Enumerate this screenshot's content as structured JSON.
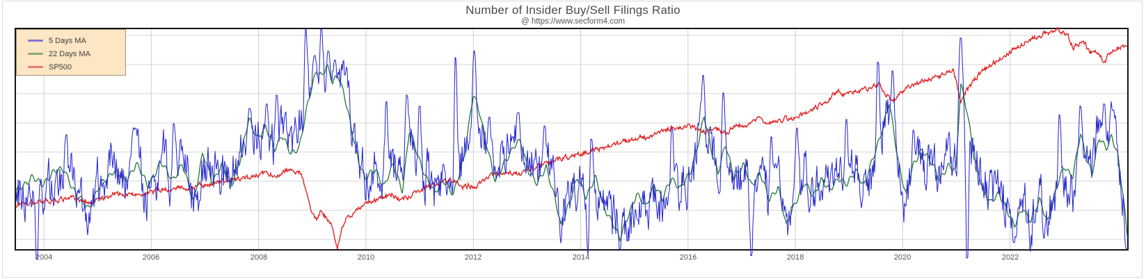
{
  "title": "Number of Insider Buy/Sell Filings Ratio",
  "subtitle": "@ https://www.secform4.com",
  "legend": {
    "background": "#fce6c3",
    "border_color": "#a3947c",
    "items": [
      {
        "label": "5 Days MA",
        "swatch_color": "#8276d4",
        "line_color": "#2a2ace"
      },
      {
        "label": "22 Days MA",
        "swatch_color": "#90a877",
        "line_color": "#2d7f3f"
      },
      {
        "label": "SP500",
        "swatch_color": "#e87a72",
        "line_color": "#e02424"
      }
    ]
  },
  "axis": {
    "x_ticks": [
      "2004",
      "2006",
      "2008",
      "2010",
      "2012",
      "2014",
      "2016",
      "2018",
      "2020",
      "2022"
    ],
    "y_ticks": [],
    "y_axis_note": "y-axis has no visible labels"
  },
  "chart_data": {
    "type": "line",
    "title": "Number of Insider Buy/Sell Filings Ratio",
    "subtitle": "@ https://www.secform4.com",
    "xlabel": "",
    "ylabel": "",
    "x_range": [
      2003.48,
      2024.18
    ],
    "x_tick_years": [
      2004,
      2006,
      2008,
      2010,
      2012,
      2014,
      2016,
      2018,
      2020,
      2022
    ],
    "y_axis": "unlabeled; series values normalized 0 (bottom of plot) to 1 (top of plot)",
    "grid": "on",
    "legend_position": "top-left",
    "series": [
      {
        "name": "SP500",
        "color": "#e02424",
        "style": "smooth-jitter",
        "keyframes": [
          [
            2003.46,
            0.2
          ],
          [
            2004.01,
            0.22
          ],
          [
            2004.58,
            0.23
          ],
          [
            2004.87,
            0.21
          ],
          [
            2005.27,
            0.25
          ],
          [
            2005.78,
            0.245
          ],
          [
            2006.14,
            0.27
          ],
          [
            2006.73,
            0.28
          ],
          [
            2007.34,
            0.31
          ],
          [
            2007.77,
            0.32
          ],
          [
            2008.12,
            0.35
          ],
          [
            2008.34,
            0.335
          ],
          [
            2008.52,
            0.36
          ],
          [
            2008.8,
            0.345
          ],
          [
            2008.99,
            0.17
          ],
          [
            2009.08,
            0.135
          ],
          [
            2009.17,
            0.18
          ],
          [
            2009.27,
            0.135
          ],
          [
            2009.37,
            0.1
          ],
          [
            2009.47,
            0.008
          ],
          [
            2009.56,
            0.1
          ],
          [
            2009.63,
            0.14
          ],
          [
            2009.79,
            0.17
          ],
          [
            2010.01,
            0.21
          ],
          [
            2010.27,
            0.235
          ],
          [
            2010.48,
            0.25
          ],
          [
            2010.66,
            0.22
          ],
          [
            2010.83,
            0.245
          ],
          [
            2011.13,
            0.28
          ],
          [
            2011.39,
            0.3
          ],
          [
            2011.65,
            0.32
          ],
          [
            2011.78,
            0.28
          ],
          [
            2011.91,
            0.29
          ],
          [
            2012.04,
            0.28
          ],
          [
            2012.26,
            0.33
          ],
          [
            2012.65,
            0.35
          ],
          [
            2012.84,
            0.34
          ],
          [
            2013.2,
            0.38
          ],
          [
            2013.51,
            0.4
          ],
          [
            2013.94,
            0.43
          ],
          [
            2014.37,
            0.455
          ],
          [
            2014.81,
            0.49
          ],
          [
            2015.07,
            0.51
          ],
          [
            2015.33,
            0.51
          ],
          [
            2015.63,
            0.55
          ],
          [
            2016.02,
            0.56
          ],
          [
            2016.31,
            0.53
          ],
          [
            2016.44,
            0.55
          ],
          [
            2016.7,
            0.53
          ],
          [
            2016.92,
            0.56
          ],
          [
            2017.18,
            0.57
          ],
          [
            2017.27,
            0.59
          ],
          [
            2017.53,
            0.58
          ],
          [
            2017.96,
            0.6
          ],
          [
            2018.22,
            0.62
          ],
          [
            2018.65,
            0.68
          ],
          [
            2018.8,
            0.73
          ],
          [
            2018.89,
            0.7
          ],
          [
            2019.09,
            0.715
          ],
          [
            2019.35,
            0.73
          ],
          [
            2019.55,
            0.75
          ],
          [
            2019.74,
            0.69
          ],
          [
            2019.8,
            0.67
          ],
          [
            2019.94,
            0.71
          ],
          [
            2020.2,
            0.75
          ],
          [
            2020.46,
            0.77
          ],
          [
            2020.72,
            0.79
          ],
          [
            2020.94,
            0.82
          ],
          [
            2021.08,
            0.67
          ],
          [
            2021.2,
            0.72
          ],
          [
            2021.33,
            0.77
          ],
          [
            2021.5,
            0.81
          ],
          [
            2021.76,
            0.86
          ],
          [
            2022.15,
            0.92
          ],
          [
            2022.5,
            0.97
          ],
          [
            2022.92,
            1.0
          ],
          [
            2023.08,
            0.97
          ],
          [
            2023.18,
            0.91
          ],
          [
            2023.36,
            0.95
          ],
          [
            2023.49,
            0.89
          ],
          [
            2023.62,
            0.9
          ],
          [
            2023.75,
            0.85
          ],
          [
            2023.92,
            0.91
          ],
          [
            2024.05,
            0.92
          ],
          [
            2024.18,
            0.91
          ]
        ]
      },
      {
        "name": "22 Days MA",
        "color": "#2d7f3f",
        "style": "smooth",
        "keyframes": [
          [
            2003.46,
            0.25
          ],
          [
            2003.77,
            0.33
          ],
          [
            2003.96,
            0.29
          ],
          [
            2004.16,
            0.35
          ],
          [
            2004.39,
            0.36
          ],
          [
            2004.61,
            0.24
          ],
          [
            2004.84,
            0.19
          ],
          [
            2005.06,
            0.29
          ],
          [
            2005.3,
            0.36
          ],
          [
            2005.52,
            0.31
          ],
          [
            2005.72,
            0.39
          ],
          [
            2005.93,
            0.29
          ],
          [
            2006.18,
            0.39
          ],
          [
            2006.4,
            0.32
          ],
          [
            2006.58,
            0.38
          ],
          [
            2006.79,
            0.22
          ],
          [
            2006.96,
            0.43
          ],
          [
            2007.14,
            0.31
          ],
          [
            2007.31,
            0.38
          ],
          [
            2007.49,
            0.29
          ],
          [
            2007.66,
            0.41
          ],
          [
            2007.82,
            0.59
          ],
          [
            2007.98,
            0.51
          ],
          [
            2008.13,
            0.55
          ],
          [
            2008.3,
            0.46
          ],
          [
            2008.43,
            0.52
          ],
          [
            2008.6,
            0.43
          ],
          [
            2008.76,
            0.47
          ],
          [
            2008.92,
            0.66
          ],
          [
            2009.08,
            0.82
          ],
          [
            2009.18,
            0.79
          ],
          [
            2009.27,
            0.83
          ],
          [
            2009.38,
            0.755
          ],
          [
            2009.48,
            0.8
          ],
          [
            2009.59,
            0.71
          ],
          [
            2009.73,
            0.54
          ],
          [
            2009.86,
            0.41
          ],
          [
            2009.99,
            0.32
          ],
          [
            2010.18,
            0.36
          ],
          [
            2010.34,
            0.29
          ],
          [
            2010.51,
            0.38
          ],
          [
            2010.68,
            0.27
          ],
          [
            2010.81,
            0.54
          ],
          [
            2010.96,
            0.43
          ],
          [
            2011.12,
            0.33
          ],
          [
            2011.28,
            0.25
          ],
          [
            2011.45,
            0.32
          ],
          [
            2011.63,
            0.24
          ],
          [
            2011.84,
            0.44
          ],
          [
            2012.0,
            0.7
          ],
          [
            2012.13,
            0.61
          ],
          [
            2012.26,
            0.47
          ],
          [
            2012.41,
            0.3
          ],
          [
            2012.58,
            0.4
          ],
          [
            2012.75,
            0.46
          ],
          [
            2012.88,
            0.49
          ],
          [
            2013.03,
            0.36
          ],
          [
            2013.19,
            0.29
          ],
          [
            2013.36,
            0.38
          ],
          [
            2013.53,
            0.22
          ],
          [
            2013.63,
            0.1
          ],
          [
            2013.79,
            0.22
          ],
          [
            2013.94,
            0.32
          ],
          [
            2014.1,
            0.24
          ],
          [
            2014.27,
            0.33
          ],
          [
            2014.43,
            0.19
          ],
          [
            2014.59,
            0.13
          ],
          [
            2014.73,
            0.04
          ],
          [
            2014.89,
            0.16
          ],
          [
            2015.04,
            0.25
          ],
          [
            2015.21,
            0.19
          ],
          [
            2015.37,
            0.3
          ],
          [
            2015.52,
            0.22
          ],
          [
            2015.69,
            0.33
          ],
          [
            2015.86,
            0.27
          ],
          [
            2016.04,
            0.35
          ],
          [
            2016.21,
            0.5
          ],
          [
            2016.3,
            0.6
          ],
          [
            2016.43,
            0.46
          ],
          [
            2016.56,
            0.35
          ],
          [
            2016.7,
            0.47
          ],
          [
            2016.86,
            0.33
          ],
          [
            2017.03,
            0.38
          ],
          [
            2017.18,
            0.29
          ],
          [
            2017.34,
            0.35
          ],
          [
            2017.51,
            0.22
          ],
          [
            2017.68,
            0.29
          ],
          [
            2017.83,
            0.1
          ],
          [
            2017.99,
            0.21
          ],
          [
            2018.16,
            0.3
          ],
          [
            2018.33,
            0.24
          ],
          [
            2018.48,
            0.32
          ],
          [
            2018.64,
            0.26
          ],
          [
            2018.8,
            0.33
          ],
          [
            2018.97,
            0.29
          ],
          [
            2019.13,
            0.36
          ],
          [
            2019.28,
            0.29
          ],
          [
            2019.45,
            0.41
          ],
          [
            2019.62,
            0.55
          ],
          [
            2019.75,
            0.66
          ],
          [
            2019.91,
            0.41
          ],
          [
            2020.06,
            0.25
          ],
          [
            2020.2,
            0.38
          ],
          [
            2020.36,
            0.46
          ],
          [
            2020.51,
            0.4
          ],
          [
            2020.68,
            0.32
          ],
          [
            2020.84,
            0.38
          ],
          [
            2020.99,
            0.35
          ],
          [
            2021.08,
            0.76
          ],
          [
            2021.2,
            0.63
          ],
          [
            2021.33,
            0.41
          ],
          [
            2021.48,
            0.29
          ],
          [
            2021.64,
            0.21
          ],
          [
            2021.8,
            0.25
          ],
          [
            2021.95,
            0.18
          ],
          [
            2022.08,
            0.1
          ],
          [
            2022.24,
            0.19
          ],
          [
            2022.39,
            0.13
          ],
          [
            2022.55,
            0.22
          ],
          [
            2022.7,
            0.13
          ],
          [
            2022.86,
            0.27
          ],
          [
            2023.01,
            0.38
          ],
          [
            2023.17,
            0.33
          ],
          [
            2023.31,
            0.52
          ],
          [
            2023.43,
            0.41
          ],
          [
            2023.53,
            0.35
          ],
          [
            2023.66,
            0.5
          ],
          [
            2023.79,
            0.46
          ],
          [
            2023.89,
            0.52
          ],
          [
            2024.0,
            0.43
          ],
          [
            2024.1,
            0.25
          ],
          [
            2024.18,
            0.07
          ]
        ]
      },
      {
        "name": "5 Days MA",
        "color": "#2a2ace",
        "style": "noisy-daily",
        "baseline": "22 Days MA",
        "spikes": [
          [
            2003.87,
            -0.045
          ],
          [
            2004.42,
            0.52
          ],
          [
            2005.7,
            0.55
          ],
          [
            2006.42,
            0.57
          ],
          [
            2007.83,
            0.64
          ],
          [
            2008.15,
            0.66
          ],
          [
            2008.34,
            0.7
          ],
          [
            2008.88,
            1.0
          ],
          [
            2009.05,
            0.88
          ],
          [
            2009.17,
            1.0
          ],
          [
            2009.3,
            0.9
          ],
          [
            2009.42,
            0.86
          ],
          [
            2010.38,
            0.67
          ],
          [
            2010.76,
            0.7
          ],
          [
            2011.0,
            0.65
          ],
          [
            2011.67,
            0.87
          ],
          [
            2012.02,
            0.9
          ],
          [
            2012.3,
            0.6
          ],
          [
            2012.84,
            0.62
          ],
          [
            2013.33,
            0.56
          ],
          [
            2014.14,
            -0.03
          ],
          [
            2014.2,
            0.5
          ],
          [
            2014.73,
            0.0
          ],
          [
            2015.7,
            0.55
          ],
          [
            2016.28,
            0.79
          ],
          [
            2016.66,
            0.71
          ],
          [
            2017.18,
            -0.03
          ],
          [
            2017.55,
            0.51
          ],
          [
            2018.03,
            0.55
          ],
          [
            2018.95,
            0.59
          ],
          [
            2019.54,
            0.85
          ],
          [
            2019.81,
            0.81
          ],
          [
            2020.2,
            0.54
          ],
          [
            2021.08,
            0.96
          ],
          [
            2021.2,
            -0.04
          ],
          [
            2022.07,
            0.03
          ],
          [
            2022.63,
            0.05
          ],
          [
            2022.92,
            0.61
          ],
          [
            2023.31,
            0.65
          ],
          [
            2023.75,
            0.66
          ],
          [
            2023.92,
            0.63
          ],
          [
            2024.17,
            0.0
          ]
        ]
      }
    ]
  }
}
